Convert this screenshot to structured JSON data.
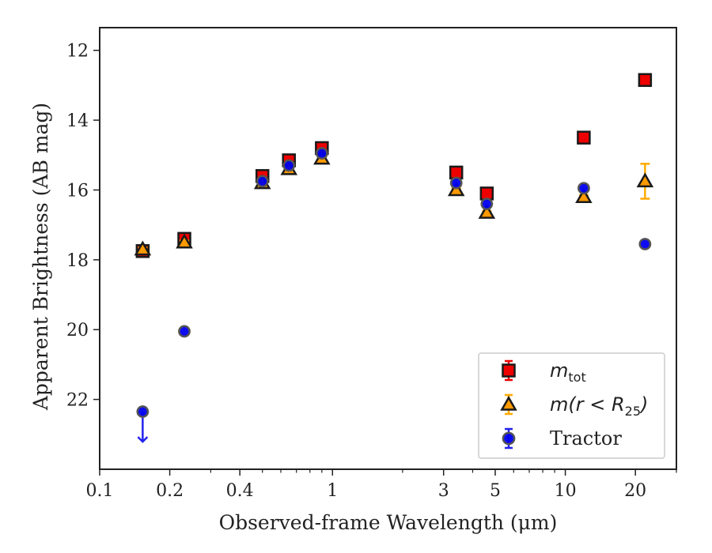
{
  "chart_data": {
    "type": "scatter",
    "title": "",
    "xlabel": "Observed-frame Wavelength (μm)",
    "ylabel": "Apparent Brightness (AB mag)",
    "xscale": "log",
    "xlim": [
      0.1,
      30
    ],
    "ylim": [
      24.0,
      11.35
    ],
    "y_inverted": true,
    "x_ticks": [
      "0.1",
      "0.2",
      "0.4",
      "1",
      "3",
      "5",
      "10",
      "20"
    ],
    "y_ticks": [
      "12",
      "14",
      "16",
      "18",
      "20",
      "22"
    ],
    "grid": false,
    "legend_position": "lower-right",
    "series": [
      {
        "name": "m_tot",
        "label_main": "m",
        "label_sub": "tot",
        "marker": "square",
        "color": "#ee0000",
        "edge_color": "#1a1a1a",
        "errorbar_color": "#ee0000",
        "points": [
          {
            "x": 0.153,
            "y": 17.75
          },
          {
            "x": 0.231,
            "y": 17.4
          },
          {
            "x": 0.5,
            "y": 15.6
          },
          {
            "x": 0.65,
            "y": 15.15
          },
          {
            "x": 0.9,
            "y": 14.8
          },
          {
            "x": 3.4,
            "y": 15.5
          },
          {
            "x": 4.6,
            "y": 16.1
          },
          {
            "x": 12.0,
            "y": 14.5
          },
          {
            "x": 22.0,
            "y": 12.85
          }
        ]
      },
      {
        "name": "m(r < R25)",
        "label_main": "m(r < R",
        "label_sub": "25",
        "label_end": ")",
        "marker": "triangle",
        "color": "#ff9900",
        "edge_color": "#1a1a1a",
        "errorbar_color": "#ffaa00",
        "points": [
          {
            "x": 0.153,
            "y": 17.7,
            "yerr": 0.05
          },
          {
            "x": 0.231,
            "y": 17.5,
            "yerr": 0.05
          },
          {
            "x": 0.5,
            "y": 15.8,
            "yerr": 0.05
          },
          {
            "x": 0.65,
            "y": 15.4,
            "yerr": 0.05
          },
          {
            "x": 0.9,
            "y": 15.1,
            "yerr": 0.05
          },
          {
            "x": 3.4,
            "y": 16.0,
            "yerr": 0.05
          },
          {
            "x": 4.6,
            "y": 16.65,
            "yerr": 0.05
          },
          {
            "x": 12.0,
            "y": 16.2,
            "yerr": 0.05
          },
          {
            "x": 22.0,
            "y": 15.75,
            "yerr": 0.5
          }
        ]
      },
      {
        "name": "Tractor",
        "marker": "circle",
        "color": "#0000ee",
        "edge_color": "#555555",
        "errorbar_color": "#2222ee",
        "points": [
          {
            "x": 0.153,
            "y": 22.35,
            "upper_limit": true
          },
          {
            "x": 0.231,
            "y": 20.05
          },
          {
            "x": 0.5,
            "y": 15.75
          },
          {
            "x": 0.65,
            "y": 15.3
          },
          {
            "x": 0.9,
            "y": 14.95
          },
          {
            "x": 3.4,
            "y": 15.8
          },
          {
            "x": 4.6,
            "y": 16.4
          },
          {
            "x": 12.0,
            "y": 15.95
          },
          {
            "x": 22.0,
            "y": 17.55
          }
        ]
      }
    ]
  }
}
